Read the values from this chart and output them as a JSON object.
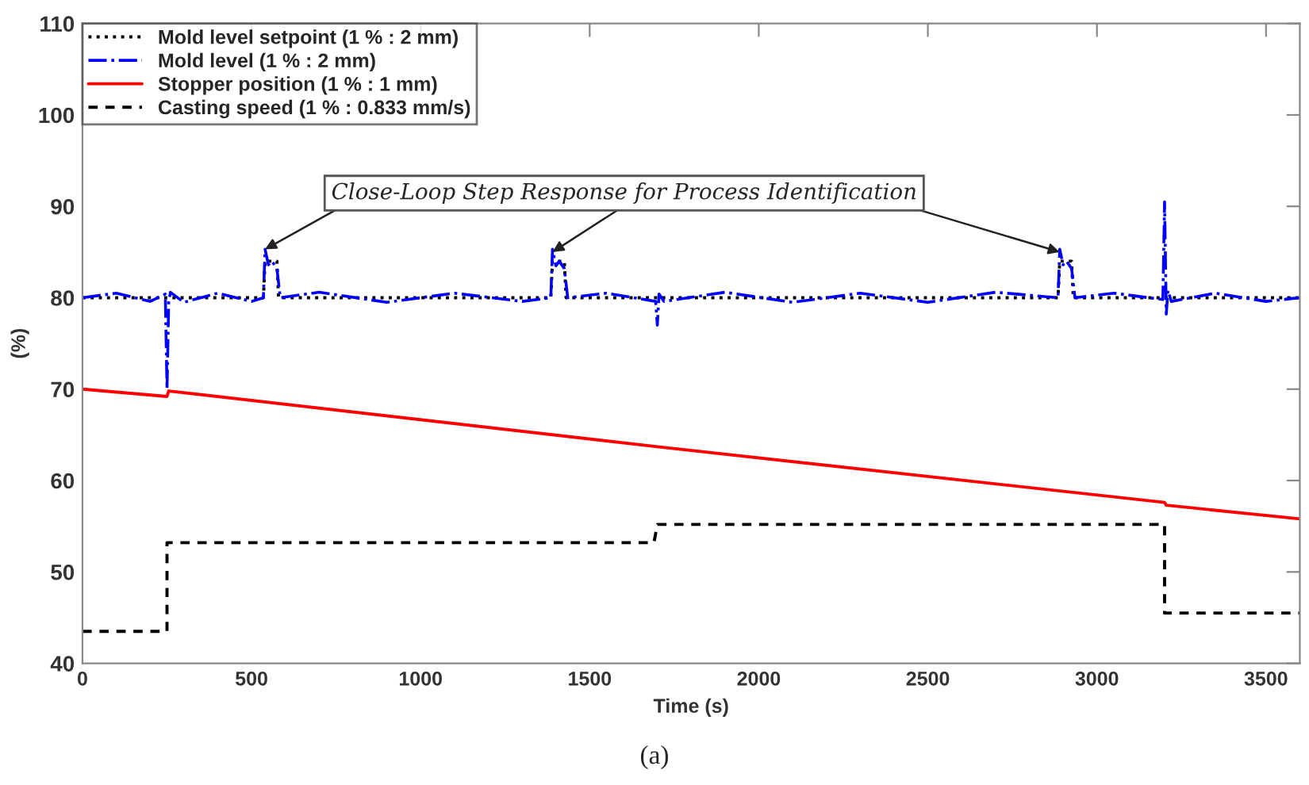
{
  "chart_data": {
    "type": "line",
    "xlabel": "Time (s)",
    "ylabel": "(%)",
    "xlim": [
      0,
      3600
    ],
    "ylim": [
      40,
      110
    ],
    "xticks": [
      0,
      500,
      1000,
      1500,
      2000,
      2500,
      3000,
      3500
    ],
    "yticks": [
      40,
      50,
      60,
      70,
      80,
      90,
      100,
      110
    ],
    "grid": false,
    "legend": "top left",
    "marker": "none",
    "series": [
      {
        "name": "Mold level setpoint (1 % : 2 mm)",
        "color": "#000000",
        "line_style": "dotted",
        "x": [
          0,
          535,
          540,
          575,
          580,
          1385,
          1390,
          1425,
          1430,
          2885,
          2890,
          2925,
          2930,
          3600
        ],
        "values": [
          80,
          80,
          84,
          84,
          80,
          80,
          84,
          84,
          80,
          80,
          84,
          84,
          80,
          80
        ]
      },
      {
        "name": "Mold level (1 % : 2 mm)",
        "color": "#0000ff",
        "line_style": "dashdot",
        "x": [
          0,
          100,
          200,
          245,
          250,
          255,
          260,
          300,
          400,
          500,
          535,
          540,
          550,
          560,
          575,
          585,
          700,
          900,
          1100,
          1300,
          1385,
          1390,
          1400,
          1410,
          1425,
          1435,
          1550,
          1695,
          1700,
          1705,
          1720,
          1900,
          2100,
          2300,
          2500,
          2700,
          2885,
          2890,
          2900,
          2910,
          2925,
          2935,
          3050,
          3195,
          3200,
          3205,
          3210,
          3220,
          3350,
          3500,
          3600
        ],
        "values": [
          80,
          80.5,
          79.6,
          80.4,
          70,
          79.5,
          80.6,
          79.5,
          80.5,
          79.6,
          80,
          85.3,
          83.6,
          84,
          83.2,
          80,
          80.6,
          79.5,
          80.5,
          79.6,
          80,
          85.3,
          83.5,
          84,
          83.2,
          80,
          80.5,
          79.6,
          77,
          80.4,
          79.6,
          80.6,
          79.5,
          80.5,
          79.5,
          80.6,
          80,
          85.3,
          83.6,
          84,
          83.2,
          80,
          80.5,
          79.8,
          90.5,
          78.2,
          80.8,
          79.6,
          80.5,
          79.6,
          80
        ]
      },
      {
        "name": "Stopper position (1 % : 1 mm)",
        "color": "#ff0000",
        "line_style": "solid",
        "x": [
          0,
          250,
          255,
          1700,
          3200,
          3205,
          3600
        ],
        "values": [
          70,
          69.2,
          69.8,
          63.7,
          57.6,
          57.3,
          55.8
        ]
      },
      {
        "name": "Casting speed (1 % : 0.833 mm/s)",
        "color": "#000000",
        "line_style": "dashed",
        "x": [
          0,
          250,
          250,
          1690,
          1700,
          3200,
          3200,
          3600
        ],
        "values": [
          43.5,
          43.5,
          53.2,
          53.2,
          55.2,
          55.2,
          45.5,
          45.5
        ]
      }
    ],
    "annotations": [
      {
        "text": "Close-Loop Step Response for Process Identification",
        "x": 540,
        "y": 85.3
      },
      "(a)"
    ]
  }
}
